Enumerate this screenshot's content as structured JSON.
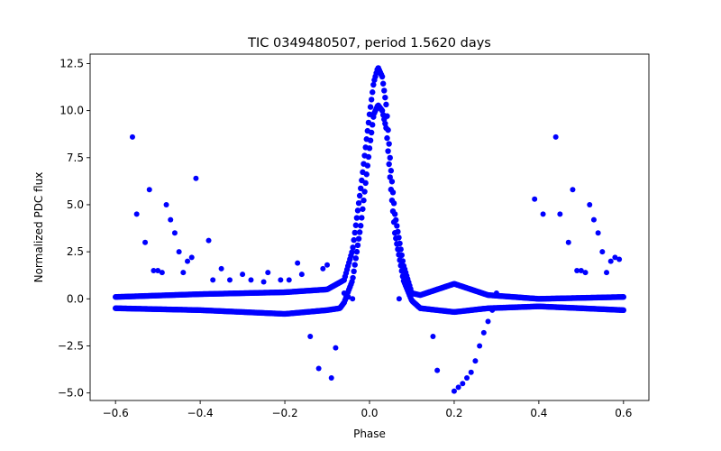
{
  "chart_data": {
    "type": "scatter",
    "title": "TIC 0349480507, period 1.5620 days",
    "xlabel": "Phase",
    "ylabel": "Normalized PDC flux",
    "xlim": [
      -0.66,
      0.66
    ],
    "ylim": [
      -5.4,
      13.0
    ],
    "xticks": [
      -0.6,
      -0.4,
      -0.2,
      0.0,
      0.2,
      0.4,
      0.6
    ],
    "xtick_labels": [
      "−0.6",
      "−0.4",
      "−0.2",
      "0.0",
      "0.2",
      "0.4",
      "0.6"
    ],
    "yticks": [
      -5.0,
      -2.5,
      0.0,
      2.5,
      5.0,
      7.5,
      10.0,
      12.5
    ],
    "ytick_labels": [
      "−5.0",
      "−2.5",
      "0.0",
      "2.5",
      "5.0",
      "7.5",
      "10.0",
      "12.5"
    ],
    "grid": false,
    "marker_color": "#0000ff",
    "series": [
      {
        "x": [
          -0.56,
          -0.55,
          -0.53,
          -0.52,
          -0.51,
          -0.5,
          -0.49,
          -0.48,
          -0.47,
          -0.46,
          -0.45,
          -0.44,
          -0.43,
          -0.42,
          -0.41,
          -0.38,
          -0.37,
          -0.35,
          -0.33,
          -0.3,
          -0.28,
          -0.25,
          -0.24,
          -0.21,
          -0.19,
          -0.17,
          -0.16,
          -0.14,
          -0.12,
          -0.11,
          -0.1,
          -0.09,
          -0.08,
          -0.06,
          -0.05,
          -0.04,
          0.07,
          0.15,
          0.16,
          0.2,
          0.21,
          0.22,
          0.23,
          0.24,
          0.25,
          0.26,
          0.27,
          0.28,
          0.29,
          0.3,
          0.39,
          0.41,
          0.44,
          0.45,
          0.47,
          0.48,
          0.49,
          0.5,
          0.51,
          0.52,
          0.53,
          0.54,
          0.55,
          0.56,
          0.57,
          0.58,
          0.59
        ],
        "y": [
          8.6,
          4.5,
          3.0,
          5.8,
          1.5,
          1.5,
          1.4,
          5.0,
          4.2,
          3.5,
          2.5,
          1.4,
          2.0,
          2.2,
          6.4,
          3.1,
          1.0,
          1.6,
          1.0,
          1.3,
          1.0,
          0.9,
          1.4,
          1.0,
          1.0,
          1.9,
          1.3,
          -2.0,
          -3.7,
          1.6,
          1.8,
          -4.2,
          -2.6,
          0.3,
          0.1,
          0.0,
          0.0,
          -2.0,
          -3.8,
          -4.9,
          -4.7,
          -4.5,
          -4.2,
          -3.9,
          -3.3,
          -2.5,
          -1.8,
          -1.2,
          -0.6,
          0.3,
          5.3,
          4.5,
          8.6,
          4.5,
          3.0,
          5.8,
          1.5,
          1.5,
          1.4,
          5.0,
          4.2,
          3.5,
          2.5,
          1.4,
          2.0,
          2.2,
          2.1
        ]
      }
    ],
    "dense_bands": [
      {
        "name": "upper-baseline",
        "x": [
          -0.6,
          -0.4,
          -0.2,
          -0.1,
          -0.06,
          -0.04,
          -0.02,
          0.0,
          0.01,
          0.02,
          0.03,
          0.04,
          0.05,
          0.06,
          0.08,
          0.1,
          0.12,
          0.2,
          0.28,
          0.4,
          0.6
        ],
        "y": [
          0.1,
          0.25,
          0.35,
          0.5,
          1.0,
          2.6,
          6.0,
          9.8,
          11.5,
          12.3,
          11.8,
          10.2,
          7.0,
          4.5,
          1.8,
          0.3,
          0.2,
          0.8,
          0.2,
          0.0,
          0.1
        ]
      },
      {
        "name": "lower-baseline",
        "x": [
          -0.6,
          -0.4,
          -0.2,
          -0.1,
          -0.07,
          -0.06,
          -0.04,
          -0.02,
          0.0,
          0.01,
          0.02,
          0.03,
          0.04,
          0.05,
          0.06,
          0.08,
          0.1,
          0.12,
          0.2,
          0.28,
          0.4,
          0.6
        ],
        "y": [
          -0.5,
          -0.6,
          -0.8,
          -0.6,
          -0.5,
          -0.2,
          1.0,
          4.0,
          8.0,
          9.8,
          10.3,
          10.0,
          9.0,
          6.0,
          3.5,
          1.0,
          -0.1,
          -0.5,
          -0.7,
          -0.5,
          -0.4,
          -0.6
        ]
      }
    ]
  }
}
